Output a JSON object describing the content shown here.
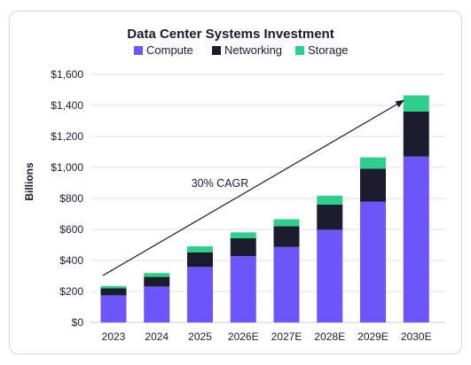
{
  "chart_data": {
    "type": "bar",
    "stacked": true,
    "title": "Data Center Systems Investment",
    "ylabel": "Billions",
    "xlabel": "",
    "categories": [
      "2023",
      "2024",
      "2025",
      "2026E",
      "2027E",
      "2028E",
      "2029E",
      "2030E"
    ],
    "series": [
      {
        "name": "Compute",
        "color": "#6c55f9",
        "values": [
          175,
          232,
          358,
          428,
          487,
          598,
          780,
          1070
        ]
      },
      {
        "name": "Networking",
        "color": "#1c1c2e",
        "values": [
          45,
          62,
          95,
          115,
          133,
          162,
          212,
          290
        ]
      },
      {
        "name": "Storage",
        "color": "#2ecf8a",
        "values": [
          15,
          25,
          38,
          38,
          46,
          57,
          73,
          105
        ]
      }
    ],
    "ylim": [
      0,
      1600
    ],
    "yticks": [
      0,
      200,
      400,
      600,
      800,
      1000,
      1200,
      1400,
      1600
    ],
    "ytick_labels": [
      "$0",
      "$200",
      "$400",
      "$600",
      "$800",
      "$1,000",
      "$1,200",
      "$1,400",
      "$1,600"
    ],
    "grid": true,
    "legend_position": "top-center",
    "annotation": {
      "text": "30% CAGR",
      "arrow_from": [
        "2023",
        280
      ],
      "arrow_to": [
        "2030E",
        1450
      ]
    }
  }
}
